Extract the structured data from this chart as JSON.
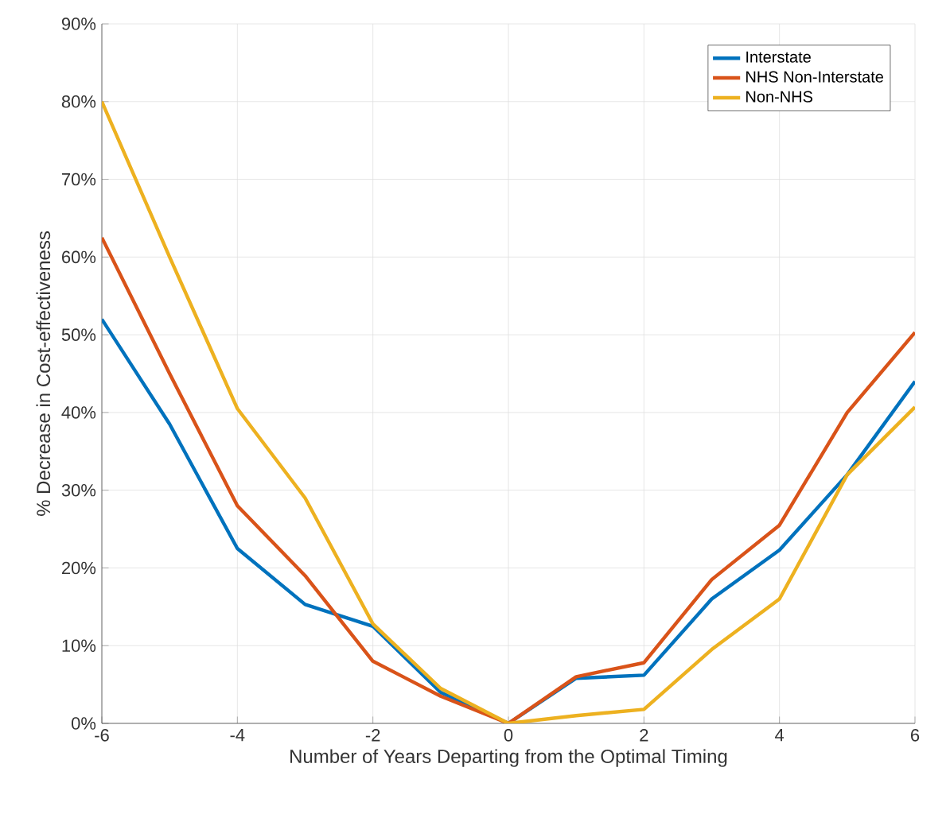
{
  "chart_data": {
    "type": "line",
    "xlabel": "Number of Years Departing from the Optimal Timing",
    "ylabel": "% Decrease in Cost-effectiveness",
    "x": [
      -6,
      -5,
      -4,
      -3,
      -2,
      -1,
      0,
      1,
      2,
      3,
      4,
      5,
      6
    ],
    "series": [
      {
        "name": "Interstate",
        "color": "#0072bd",
        "values": [
          52,
          38.5,
          22.5,
          15.3,
          12.5,
          4,
          0,
          5.8,
          6.2,
          16,
          22.3,
          32,
          44
        ]
      },
      {
        "name": "NHS Non-Interstate",
        "color": "#d95319",
        "values": [
          62.5,
          45,
          28,
          19,
          8,
          3.5,
          0,
          6,
          7.8,
          18.5,
          25.5,
          40,
          50.3
        ]
      },
      {
        "name": "Non-NHS",
        "color": "#edb120",
        "values": [
          80,
          60,
          40.5,
          29,
          12.8,
          4.5,
          0,
          1,
          1.8,
          9.5,
          16,
          32,
          40.7
        ]
      }
    ],
    "xlim": [
      -6,
      6
    ],
    "xticks": [
      -6,
      -4,
      -2,
      0,
      2,
      4,
      6
    ],
    "ylim": [
      0,
      90
    ],
    "yticks": [
      {
        "value": 0,
        "label": "0%"
      },
      {
        "value": 10,
        "label": "10%"
      },
      {
        "value": 20,
        "label": "20%"
      },
      {
        "value": 30,
        "label": "30%"
      },
      {
        "value": 40,
        "label": "40%"
      },
      {
        "value": 50,
        "label": "50%"
      },
      {
        "value": 60,
        "label": "60%"
      },
      {
        "value": 70,
        "label": "70%"
      },
      {
        "value": 80,
        "label": "80%"
      },
      {
        "value": 90,
        "label": "90%"
      }
    ],
    "grid": true,
    "legend": "top right",
    "line_style": "solid"
  }
}
